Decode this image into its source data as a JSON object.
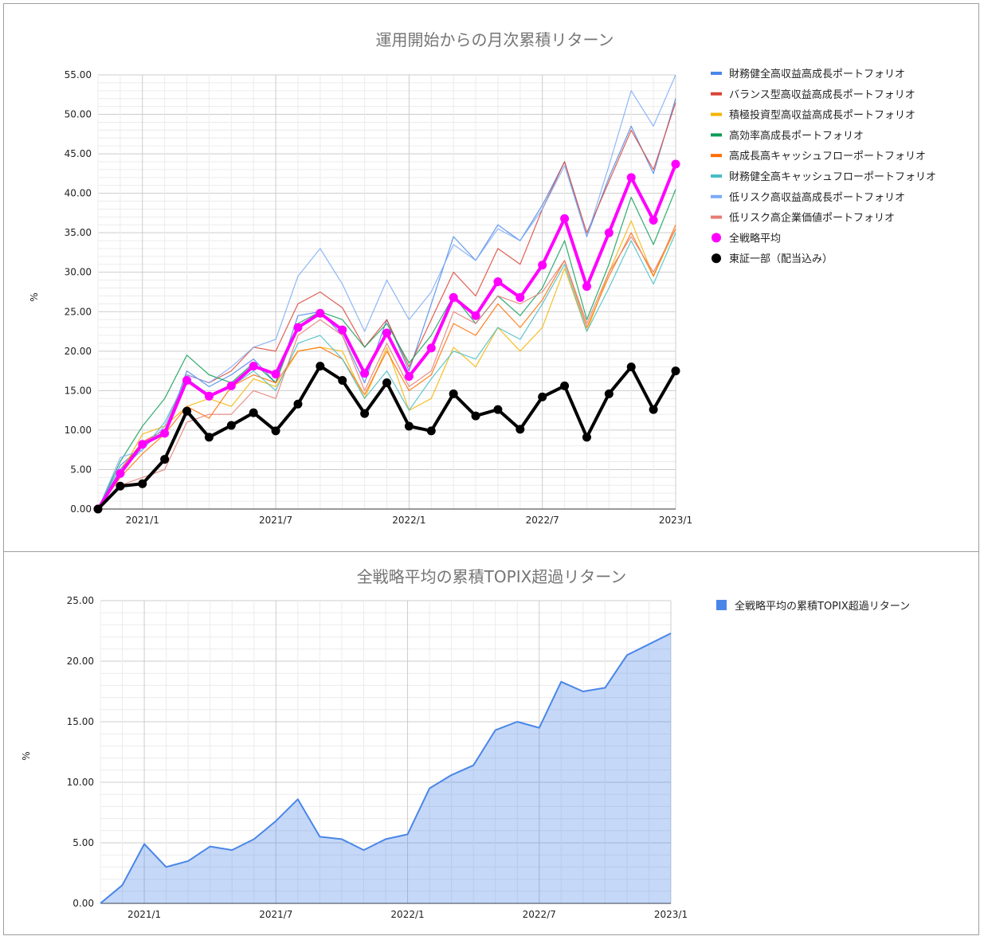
{
  "charts": [
    {
      "title": "運用開始からの月次累積リターン",
      "ylabel": "%",
      "legend_position": "right",
      "x_tick_labels": [
        "2021/1",
        "2021/7",
        "2022/1",
        "2022/7",
        "2023/1"
      ],
      "y_tick_labels": [
        "0.00",
        "5.00",
        "10.00",
        "15.00",
        "20.00",
        "25.00",
        "30.00",
        "35.00",
        "40.00",
        "45.00",
        "50.00",
        "55.00"
      ]
    },
    {
      "title": "全戦略平均の累積TOPIX超過リターン",
      "ylabel": "%",
      "legend_position": "right",
      "x_tick_labels": [
        "2021/1",
        "2021/7",
        "2022/1",
        "2022/7",
        "2023/1"
      ],
      "y_tick_labels": [
        "0.00",
        "5.00",
        "10.00",
        "15.00",
        "20.00",
        "25.00"
      ]
    }
  ],
  "chart_data": [
    {
      "type": "line",
      "title": "運用開始からの月次累積リターン",
      "xlabel": "",
      "ylabel": "%",
      "ylim": [
        0,
        55
      ],
      "y_ticks": [
        0,
        5,
        10,
        15,
        20,
        25,
        30,
        35,
        40,
        45,
        50,
        55
      ],
      "grid": true,
      "legend": "right",
      "x": [
        "2020/11",
        "2020/12",
        "2021/1",
        "2021/2",
        "2021/3",
        "2021/4",
        "2021/5",
        "2021/6",
        "2021/7",
        "2021/8",
        "2021/9",
        "2021/10",
        "2021/11",
        "2021/12",
        "2022/1",
        "2022/2",
        "2022/3",
        "2022/4",
        "2022/5",
        "2022/6",
        "2022/7",
        "2022/8",
        "2022/9",
        "2022/10",
        "2022/11",
        "2022/12",
        "2023/1"
      ],
      "series": [
        {
          "name": "財務健全高収益高成長ポートフォリオ",
          "color": "#4a86e8",
          "values": [
            0,
            5.5,
            8.0,
            9.5,
            17.5,
            15.5,
            17.0,
            19.0,
            16.0,
            24.5,
            25.0,
            22.0,
            16.0,
            24.0,
            17.5,
            26.0,
            34.5,
            31.5,
            36.0,
            34.0,
            38.5,
            44.0,
            34.5,
            42.0,
            48.5,
            42.5,
            52.0
          ]
        },
        {
          "name": "バランス型高収益高成長ポートフォリオ",
          "color": "#db4437",
          "values": [
            0,
            5.0,
            8.5,
            10.0,
            17.0,
            16.0,
            17.5,
            20.5,
            20.0,
            26.0,
            27.5,
            25.5,
            20.5,
            24.0,
            18.0,
            24.0,
            30.0,
            27.0,
            33.0,
            31.0,
            38.0,
            44.0,
            35.0,
            41.5,
            48.0,
            43.0,
            51.5
          ]
        },
        {
          "name": "積極投資型高収益高成長ポートフォリオ",
          "color": "#f4b400",
          "values": [
            0,
            4.5,
            9.5,
            10.5,
            13.0,
            14.0,
            13.0,
            16.5,
            15.5,
            20.0,
            20.5,
            20.0,
            14.0,
            20.5,
            12.5,
            14.0,
            20.5,
            18.0,
            23.0,
            20.0,
            23.0,
            30.5,
            22.5,
            30.0,
            36.5,
            29.5,
            35.5
          ]
        },
        {
          "name": "高効率高成長ポートフォリオ",
          "color": "#0f9d58",
          "values": [
            0,
            6.0,
            10.5,
            14.0,
            19.5,
            17.0,
            16.0,
            18.5,
            16.0,
            23.5,
            25.0,
            24.0,
            20.5,
            23.5,
            18.5,
            22.0,
            27.0,
            23.5,
            27.0,
            24.5,
            28.0,
            34.0,
            24.0,
            31.0,
            39.5,
            33.5,
            40.5
          ]
        },
        {
          "name": "高成長高キャッシュフローポートフォリオ",
          "color": "#ff6d00",
          "values": [
            0,
            4.0,
            7.0,
            9.5,
            13.0,
            11.5,
            15.5,
            17.0,
            16.0,
            20.0,
            20.5,
            19.0,
            14.5,
            20.0,
            15.0,
            17.0,
            23.5,
            22.0,
            26.0,
            23.0,
            26.5,
            31.5,
            23.0,
            29.5,
            35.0,
            29.5,
            36.0
          ]
        },
        {
          "name": "財務健全高キャッシュフローポートフォリオ",
          "color": "#46bdc6",
          "values": [
            0,
            5.0,
            7.5,
            11.0,
            16.5,
            14.5,
            15.5,
            17.5,
            15.0,
            21.0,
            22.0,
            19.0,
            14.0,
            17.5,
            12.5,
            16.5,
            20.0,
            19.0,
            23.0,
            21.5,
            26.0,
            31.0,
            22.5,
            28.0,
            34.0,
            28.5,
            35.0
          ]
        },
        {
          "name": "低リスク高収益高成長ポートフォリオ",
          "color": "#7baaf7",
          "values": [
            0,
            6.5,
            7.5,
            10.5,
            17.0,
            16.0,
            18.0,
            20.5,
            21.5,
            29.5,
            33.0,
            28.5,
            22.5,
            29.0,
            24.0,
            27.5,
            33.5,
            31.5,
            35.5,
            34.0,
            38.0,
            43.5,
            34.5,
            43.5,
            53.0,
            48.5,
            55.0
          ]
        },
        {
          "name": "低リスク高企業価値ポートフォリオ",
          "color": "#e67c73",
          "values": [
            0,
            3.0,
            4.0,
            5.0,
            11.0,
            12.0,
            12.0,
            15.0,
            14.0,
            22.0,
            24.0,
            22.0,
            15.0,
            21.0,
            15.5,
            17.5,
            25.0,
            23.5,
            27.0,
            26.0,
            27.5,
            31.5,
            23.5,
            30.0,
            34.5,
            30.0,
            35.5
          ]
        },
        {
          "name": "全戦略平均",
          "color": "#ff00ff",
          "values": [
            0,
            4.5,
            8.2,
            9.6,
            16.3,
            14.3,
            15.6,
            18.1,
            17.1,
            23.0,
            24.8,
            22.7,
            17.2,
            22.3,
            16.8,
            20.4,
            26.8,
            24.5,
            28.8,
            26.8,
            30.9,
            36.8,
            28.2,
            35.0,
            42.0,
            36.6,
            43.7
          ]
        },
        {
          "name": "東証一部（配当込み）",
          "color": "#000000",
          "values": [
            0,
            2.9,
            3.2,
            6.3,
            12.4,
            9.1,
            10.6,
            12.2,
            9.9,
            13.3,
            18.1,
            16.3,
            12.1,
            16.0,
            10.5,
            9.9,
            14.6,
            11.8,
            12.6,
            10.1,
            14.2,
            15.6,
            9.1,
            14.6,
            18.0,
            12.6,
            17.5
          ]
        }
      ]
    },
    {
      "type": "area",
      "title": "全戦略平均の累積TOPIX超過リターン",
      "xlabel": "",
      "ylabel": "%",
      "ylim": [
        0,
        25
      ],
      "y_ticks": [
        0,
        5,
        10,
        15,
        20,
        25
      ],
      "grid": true,
      "legend": "right",
      "x": [
        "2020/11",
        "2020/12",
        "2021/1",
        "2021/2",
        "2021/3",
        "2021/4",
        "2021/5",
        "2021/6",
        "2021/7",
        "2021/8",
        "2021/9",
        "2021/10",
        "2021/11",
        "2021/12",
        "2022/1",
        "2022/2",
        "2022/3",
        "2022/4",
        "2022/5",
        "2022/6",
        "2022/7",
        "2022/8",
        "2022/9",
        "2022/10",
        "2022/11",
        "2022/12",
        "2023/1"
      ],
      "series": [
        {
          "name": "全戦略平均の累積TOPIX超過リターン",
          "color": "#4a86e8",
          "values": [
            0,
            1.5,
            4.9,
            3.0,
            3.5,
            4.7,
            4.4,
            5.3,
            6.8,
            8.6,
            5.5,
            5.3,
            4.4,
            5.3,
            5.7,
            9.5,
            10.6,
            11.4,
            14.3,
            15.0,
            14.5,
            18.3,
            17.5,
            17.8,
            20.5,
            21.4,
            22.3
          ]
        }
      ]
    }
  ]
}
